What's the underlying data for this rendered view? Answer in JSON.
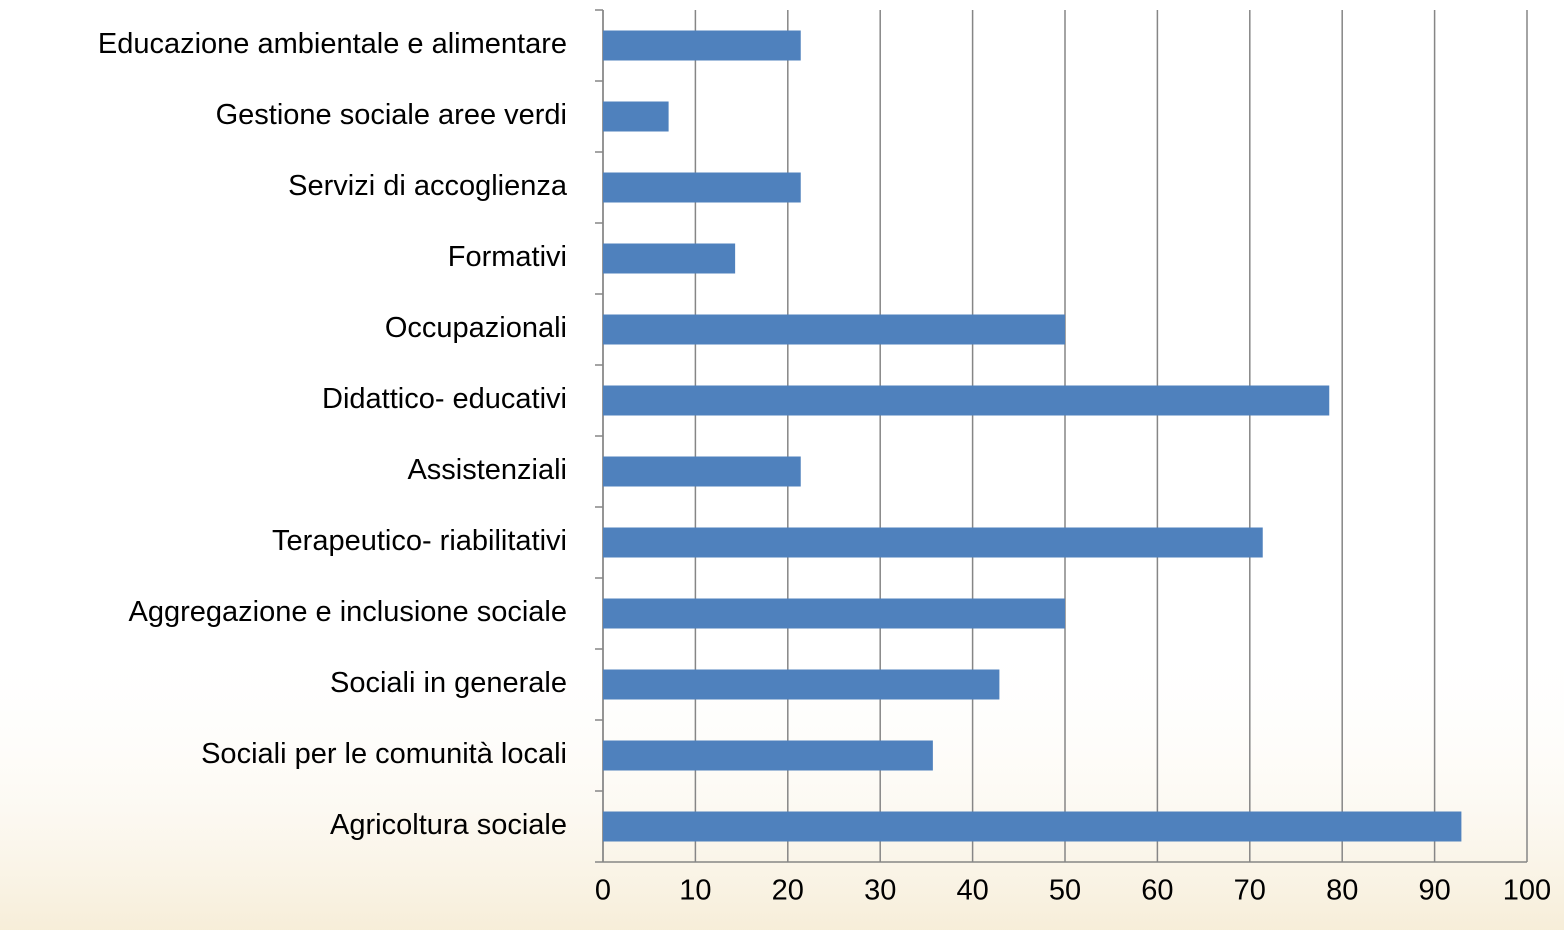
{
  "chart_data": {
    "type": "bar",
    "orientation": "horizontal",
    "categories": [
      "Educazione ambientale e alimentare",
      "Gestione sociale aree verdi",
      "Servizi di accoglienza",
      "Formativi",
      "Occupazionali",
      "Didattico- educativi",
      "Assistenziali",
      "Terapeutico- riabilitativi",
      "Aggregazione e inclusione sociale",
      "Sociali in generale",
      "Sociali per le comunità locali",
      "Agricoltura sociale"
    ],
    "values": [
      21.4,
      7.1,
      21.4,
      14.3,
      50,
      78.6,
      21.4,
      71.4,
      50,
      42.9,
      35.7,
      92.9
    ],
    "color": "#4f81bd",
    "xlim": [
      0,
      100
    ],
    "xticks": [
      0,
      10,
      20,
      30,
      40,
      50,
      60,
      70,
      80,
      90,
      100
    ],
    "grid": true
  }
}
